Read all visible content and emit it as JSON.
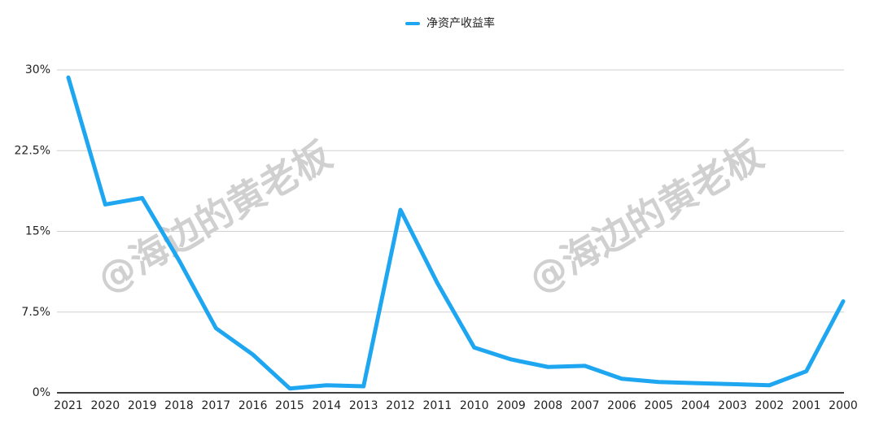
{
  "chart_data": {
    "type": "line",
    "series": [
      {
        "name": "净资产收益率",
        "color": "#1ea6f1",
        "values": [
          29.3,
          17.5,
          18.1,
          12.3,
          6.0,
          3.55,
          0.4,
          0.7,
          0.6,
          17.0,
          10.2,
          4.2,
          3.1,
          2.4,
          2.5,
          1.3,
          1.0,
          0.9,
          0.8,
          0.7,
          2.0,
          8.5
        ]
      }
    ],
    "categories": [
      "2021",
      "2020",
      "2019",
      "2018",
      "2017",
      "2016",
      "2015",
      "2014",
      "2013",
      "2012",
      "2011",
      "2010",
      "2009",
      "2008",
      "2007",
      "2006",
      "2005",
      "2004",
      "2003",
      "2002",
      "2001",
      "2000"
    ],
    "ylim": [
      0,
      30
    ],
    "yticks": [
      {
        "value": 0,
        "label": "0%"
      },
      {
        "value": 7.5,
        "label": "7.5%"
      },
      {
        "value": 15,
        "label": "15%"
      },
      {
        "value": 22.5,
        "label": "22.5%"
      },
      {
        "value": 30,
        "label": "30%"
      }
    ],
    "grid": true,
    "legend": "top",
    "watermark": "@海边的黄老板"
  }
}
